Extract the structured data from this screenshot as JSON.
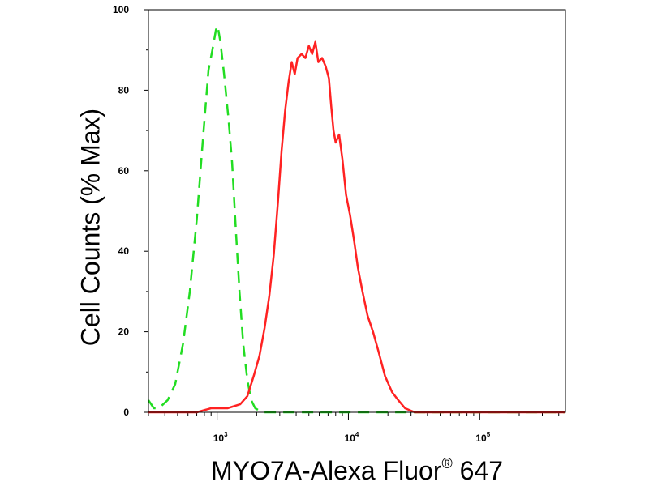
{
  "chart_data": {
    "type": "line",
    "xlabel": {
      "main": "MYO7A-Alexa Fluor",
      "sup": "®",
      "tail": " 647"
    },
    "ylabel": "Cell Counts (% Max)",
    "x_scale": "log",
    "xlim": [
      300,
      450000
    ],
    "ylim": [
      0,
      100
    ],
    "y_ticks": [
      0,
      20,
      40,
      60,
      80,
      100
    ],
    "x_ticks": [
      {
        "value": 1000,
        "base": "10",
        "exp": "3"
      },
      {
        "value": 10000,
        "base": "10",
        "exp": "4"
      },
      {
        "value": 100000,
        "base": "10",
        "exp": "5"
      }
    ],
    "series": [
      {
        "color": "#22dd22",
        "style": "dashed",
        "points": [
          [
            300,
            3
          ],
          [
            330,
            1
          ],
          [
            360,
            1
          ],
          [
            420,
            3
          ],
          [
            480,
            7
          ],
          [
            550,
            17
          ],
          [
            620,
            30
          ],
          [
            700,
            48
          ],
          [
            780,
            68
          ],
          [
            860,
            85
          ],
          [
            920,
            90
          ],
          [
            980,
            95
          ],
          [
            1010,
            96
          ],
          [
            1060,
            92
          ],
          [
            1130,
            84
          ],
          [
            1220,
            73
          ],
          [
            1300,
            62
          ],
          [
            1390,
            45
          ],
          [
            1480,
            30
          ],
          [
            1580,
            17
          ],
          [
            1700,
            8
          ],
          [
            1820,
            3
          ],
          [
            1950,
            1
          ],
          [
            2200,
            0
          ],
          [
            450000,
            0
          ]
        ]
      },
      {
        "color": "#ff2222",
        "style": "solid",
        "points": [
          [
            300,
            0
          ],
          [
            700,
            0
          ],
          [
            900,
            1
          ],
          [
            1200,
            1
          ],
          [
            1500,
            2
          ],
          [
            1700,
            4
          ],
          [
            1900,
            9
          ],
          [
            2100,
            14
          ],
          [
            2300,
            21
          ],
          [
            2500,
            29
          ],
          [
            2700,
            39
          ],
          [
            2900,
            52
          ],
          [
            3100,
            65
          ],
          [
            3300,
            75
          ],
          [
            3500,
            82
          ],
          [
            3700,
            87
          ],
          [
            3900,
            84
          ],
          [
            4100,
            88
          ],
          [
            4400,
            89
          ],
          [
            4700,
            88
          ],
          [
            5000,
            91
          ],
          [
            5300,
            89
          ],
          [
            5600,
            92
          ],
          [
            5900,
            87
          ],
          [
            6300,
            88
          ],
          [
            6700,
            86
          ],
          [
            7100,
            83
          ],
          [
            7400,
            76
          ],
          [
            7700,
            70
          ],
          [
            8000,
            67
          ],
          [
            8500,
            69
          ],
          [
            9000,
            63
          ],
          [
            9600,
            54
          ],
          [
            10300,
            49
          ],
          [
            11000,
            43
          ],
          [
            11800,
            36
          ],
          [
            12800,
            30
          ],
          [
            14000,
            24
          ],
          [
            15400,
            20
          ],
          [
            17000,
            15
          ],
          [
            19000,
            9
          ],
          [
            21500,
            5
          ],
          [
            24000,
            3
          ],
          [
            27000,
            1
          ],
          [
            32000,
            0
          ],
          [
            450000,
            0
          ]
        ]
      }
    ]
  }
}
